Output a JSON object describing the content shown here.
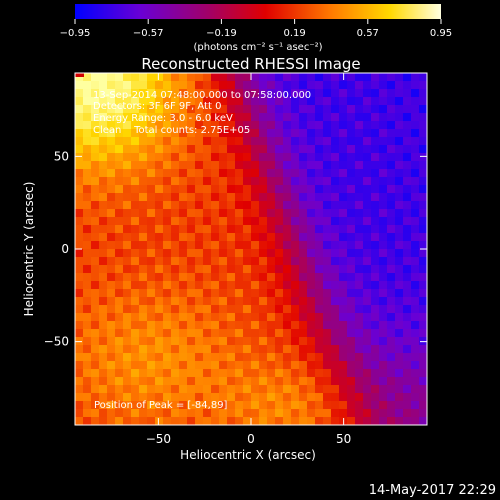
{
  "chart_data": {
    "type": "heatmap",
    "title": "Reconstructed RHESSI Image",
    "xlabel": "Heliocentric X (arcsec)",
    "ylabel": "Heliocentric Y (arcsec)",
    "xlim": [
      -95,
      95
    ],
    "ylim": [
      -95,
      95
    ],
    "x_ticks": [
      -50,
      0,
      50
    ],
    "y_ticks": [
      -50,
      0,
      50
    ],
    "x_tick_labels": [
      "−50",
      "0",
      "50"
    ],
    "y_tick_labels": [
      "−50",
      "0",
      "50"
    ],
    "colorbar": {
      "min": -0.95,
      "max": 0.95,
      "ticks": [
        -0.95,
        -0.57,
        -0.19,
        0.19,
        0.57,
        0.95
      ],
      "tick_labels": [
        "−0.95",
        "−0.57",
        "−0.19",
        "0.19",
        "0.57",
        "0.95"
      ],
      "unit_label": "(photons cm⁻² s⁻¹ asec⁻²)",
      "colormap": [
        "#0000ff",
        "#6a00d4",
        "#a0006a",
        "#e00000",
        "#ff7a00",
        "#ffd800",
        "#ffffa0"
      ]
    },
    "annotations": [
      "13-Sep-2014 07:48:00.000 to 07:58:00.000",
      "Detectors: 3F 6F 9F, Att 0",
      "Energy Range: 3.0 - 6.0 keV",
      "Clean    Total counts: 2.75E+05"
    ],
    "peak_label": "Position of Peak = [-84,89]",
    "peak": [
      -84,
      89
    ]
  },
  "footer": {
    "date": "14-May-2017 22:29"
  }
}
